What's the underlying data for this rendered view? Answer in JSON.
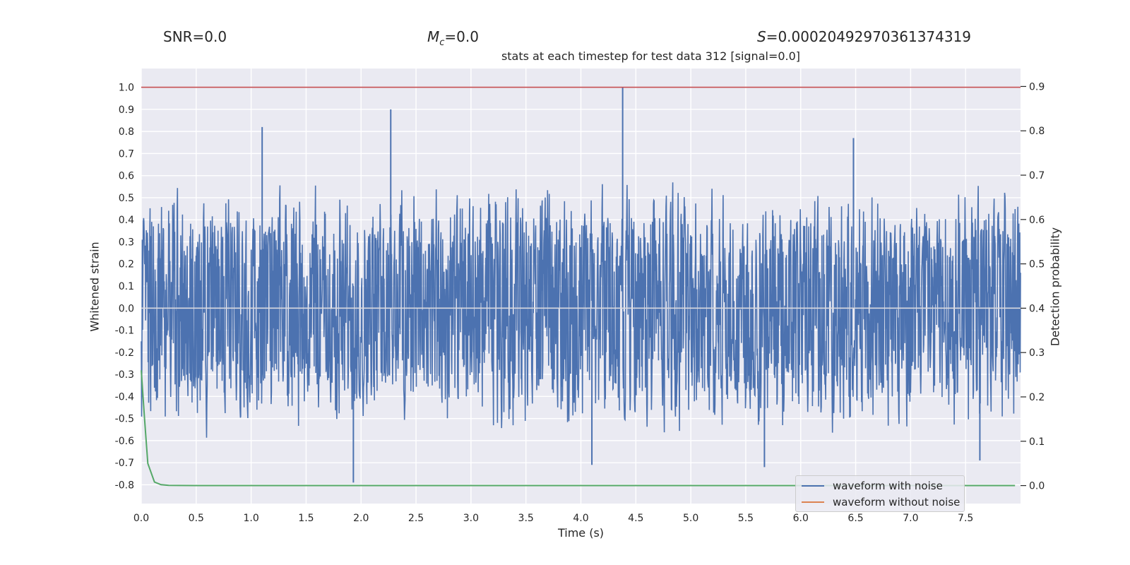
{
  "header": {
    "snr": "SNR=0.0",
    "mc_symbol": "M",
    "mc_sub": "c",
    "mc_value": "=0.0",
    "s_symbol": "S",
    "s_value": "=0.00020492970361374319"
  },
  "chart_data": {
    "type": "line",
    "title": "stats at each timestep for test data 312 [signal=0.0]",
    "xlabel": "Time (s)",
    "ylabel": "Whitened strain",
    "y2label": "Detection probability",
    "xlim": [
      0.0,
      8.0
    ],
    "ylim": [
      -0.885,
      1.085
    ],
    "y2lim": [
      -0.0405,
      0.9405
    ],
    "xticks": [
      0.0,
      0.5,
      1.0,
      1.5,
      2.0,
      2.5,
      3.0,
      3.5,
      4.0,
      4.5,
      5.0,
      5.5,
      6.0,
      6.5,
      7.0,
      7.5
    ],
    "yticks": [
      1.0,
      0.9,
      0.8,
      0.7,
      0.6,
      0.5,
      0.4,
      0.3,
      0.2,
      0.1,
      0.0,
      -0.1,
      -0.2,
      -0.3,
      -0.4,
      -0.5,
      -0.6,
      -0.7,
      -0.8
    ],
    "y2ticks": [
      0.9,
      0.8,
      0.7,
      0.6,
      0.5,
      0.4,
      0.3,
      0.2,
      0.1,
      0.0
    ],
    "grid": true,
    "legend_location": "lower-right",
    "threshold_line": {
      "axis": "y",
      "value": 1.0,
      "color": "#c44e52"
    },
    "series": [
      {
        "name": "waveform with noise",
        "color": "#4c72b0",
        "kind": "noise-strain",
        "duration_s": 8.0,
        "typical_range": [
          -0.5,
          0.5
        ],
        "peaks": [
          {
            "x": 1.1,
            "y": 0.82
          },
          {
            "x": 2.27,
            "y": 0.9
          },
          {
            "x": 4.38,
            "y": 1.0
          },
          {
            "x": 6.48,
            "y": 0.77
          },
          {
            "x": 1.93,
            "y": -0.79
          },
          {
            "x": 4.1,
            "y": -0.71
          },
          {
            "x": 5.67,
            "y": -0.72
          },
          {
            "x": 7.63,
            "y": -0.69
          }
        ]
      },
      {
        "name": "waveform without noise",
        "color": "#dd8452",
        "values_flat": 0.0
      },
      {
        "name": "detection probability",
        "color": "#55a868",
        "axis": "right",
        "x": [
          0.0,
          0.03,
          0.06,
          0.12,
          0.18,
          0.25,
          0.35,
          0.5,
          1.0,
          2.0,
          4.0,
          6.0,
          7.95
        ],
        "y": [
          0.26,
          0.15,
          0.05,
          0.008,
          0.002,
          0.0005,
          0.0002,
          0.0001,
          0.0001,
          0.0001,
          0.0001,
          0.0001,
          0.0001
        ]
      }
    ]
  }
}
